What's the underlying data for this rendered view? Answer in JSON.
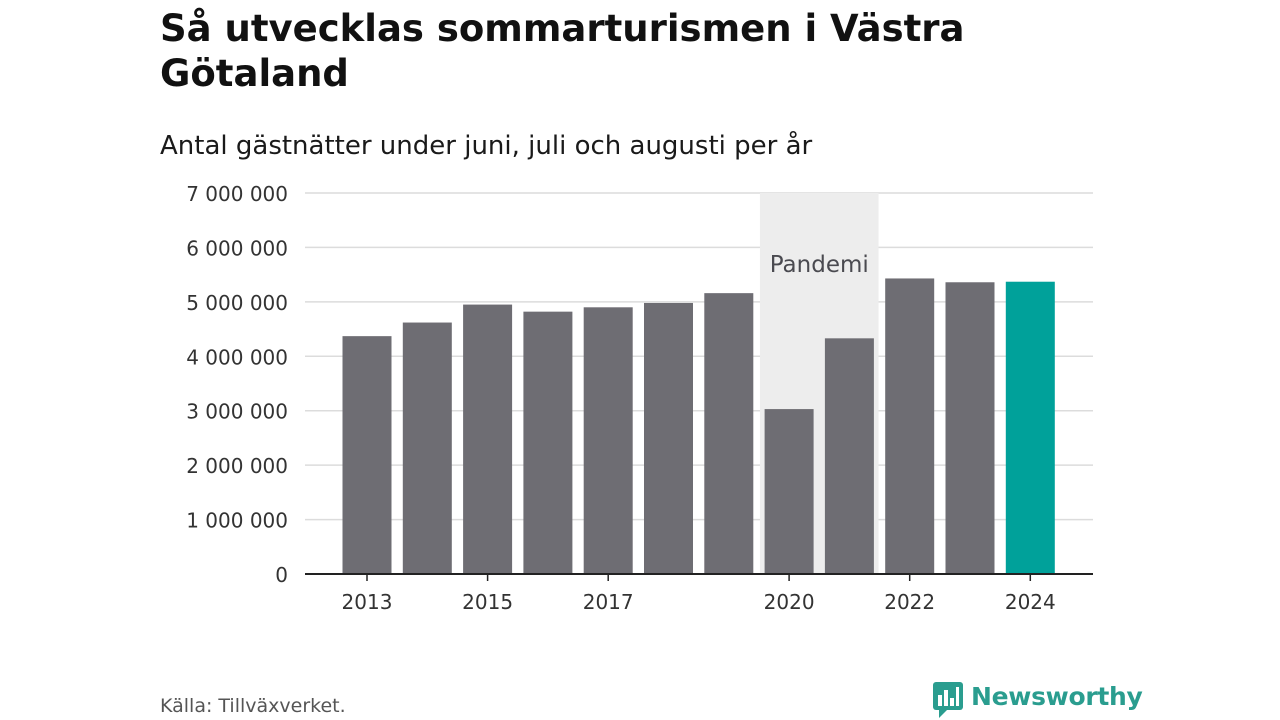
{
  "chart_data": {
    "type": "bar",
    "title": "Så utvecklas sommarturismen i Västra Götaland",
    "subtitle": "Antal gästnätter under juni, juli och augusti per år",
    "categories": [
      "2013",
      "2014",
      "2015",
      "2016",
      "2017",
      "2018",
      "2019",
      "2020",
      "2021",
      "2022",
      "2023",
      "2024"
    ],
    "values": [
      4370000,
      4620000,
      4950000,
      4820000,
      4900000,
      4980000,
      5160000,
      3030000,
      4330000,
      5430000,
      5360000,
      5370000
    ],
    "x_tick_labels": [
      "2013",
      "2015",
      "2017",
      "2020",
      "2022",
      "2024"
    ],
    "y_ticks": [
      0,
      1000000,
      2000000,
      3000000,
      4000000,
      5000000,
      6000000,
      7000000
    ],
    "y_tick_labels": [
      "0",
      "1 000 000",
      "2 000 000",
      "3 000 000",
      "4 000 000",
      "5 000 000",
      "6 000 000",
      "7 000 000"
    ],
    "ylim": [
      0,
      7000000
    ],
    "grid": true,
    "bar_color": "#6e6d73",
    "highlight_category": "2024",
    "highlight_color": "#00a19a",
    "annotation": {
      "label": "Pandemi",
      "from": "2020",
      "to": "2021",
      "color": "#ededed"
    },
    "source": "Källa: Tillväxverket."
  },
  "logo": {
    "text": "Newsworthy",
    "color": "#2a9d8f"
  }
}
